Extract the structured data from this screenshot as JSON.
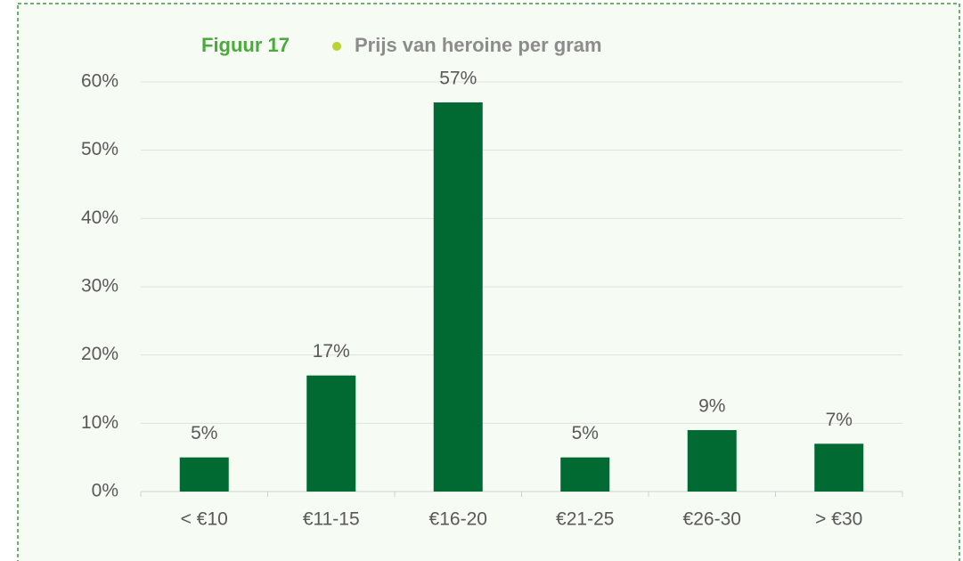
{
  "chart_data": {
    "type": "bar",
    "figure_label": "Figuur 17",
    "title": "Prijs van heroine per gram",
    "categories": [
      "< €10",
      "€11-15",
      "€16-20",
      "€21-25",
      "€26-30",
      "> €30"
    ],
    "values": [
      5,
      17,
      57,
      5,
      9,
      7
    ],
    "value_labels": [
      "5%",
      "17%",
      "57%",
      "5%",
      "9%",
      "7%"
    ],
    "color": "#006a33",
    "ylim": [
      0,
      60
    ],
    "yticks": [
      {
        "value": 0,
        "label": "0%"
      },
      {
        "value": 10,
        "label": "10%"
      },
      {
        "value": 20,
        "label": "20%"
      },
      {
        "value": 30,
        "label": "30%"
      },
      {
        "value": 40,
        "label": "40%"
      },
      {
        "value": 50,
        "label": "50%"
      },
      {
        "value": 60,
        "label": "60%"
      }
    ],
    "grid": true
  }
}
